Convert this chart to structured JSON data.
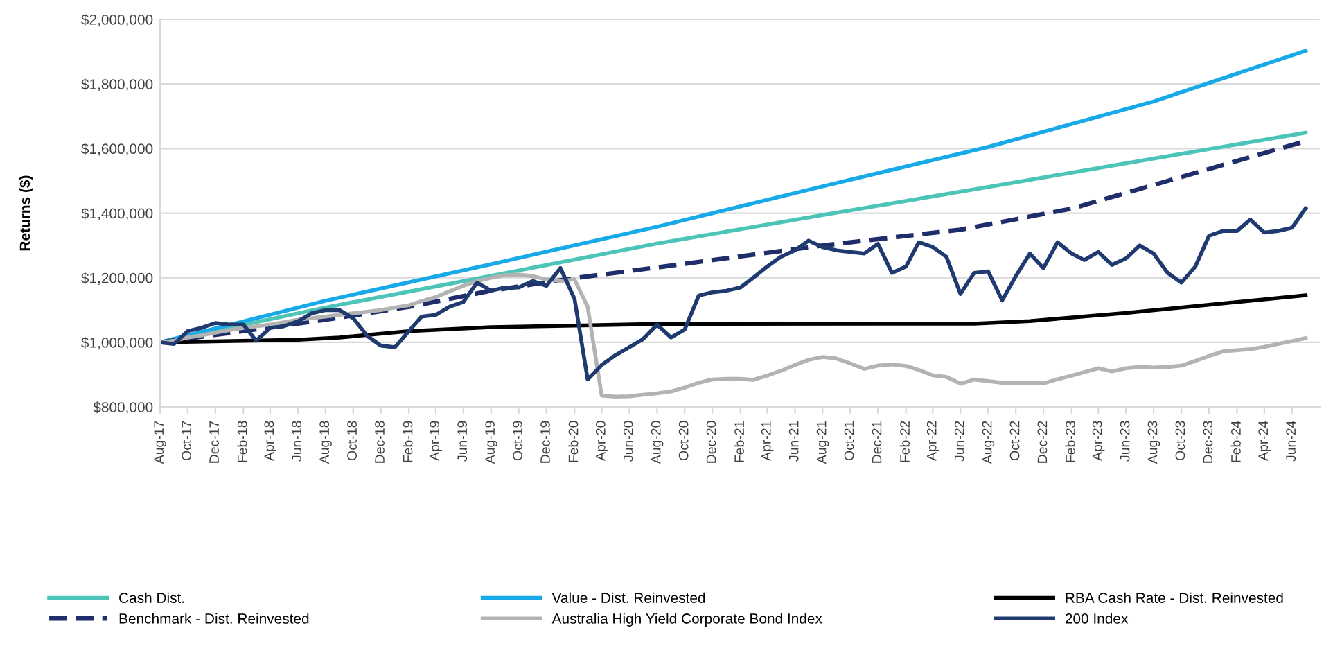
{
  "chart_data": {
    "type": "line",
    "ylabel": "Returns ($)",
    "x": [
      "2017-08",
      "2017-09",
      "2017-10",
      "2017-11",
      "2017-12",
      "2018-01",
      "2018-02",
      "2018-03",
      "2018-04",
      "2018-05",
      "2018-06",
      "2018-07",
      "2018-08",
      "2018-09",
      "2018-10",
      "2018-11",
      "2018-12",
      "2019-01",
      "2019-02",
      "2019-03",
      "2019-04",
      "2019-05",
      "2019-06",
      "2019-07",
      "2019-08",
      "2019-09",
      "2019-10",
      "2019-11",
      "2019-12",
      "2020-01",
      "2020-02",
      "2020-03",
      "2020-04",
      "2020-05",
      "2020-06",
      "2020-07",
      "2020-08",
      "2020-09",
      "2020-10",
      "2020-11",
      "2020-12",
      "2021-01",
      "2021-02",
      "2021-03",
      "2021-04",
      "2021-05",
      "2021-06",
      "2021-07",
      "2021-08",
      "2021-09",
      "2021-10",
      "2021-11",
      "2021-12",
      "2022-01",
      "2022-02",
      "2022-03",
      "2022-04",
      "2022-05",
      "2022-06",
      "2022-07",
      "2022-08",
      "2022-09",
      "2022-10",
      "2022-11",
      "2022-12",
      "2023-01",
      "2023-02",
      "2023-03",
      "2023-04",
      "2023-05",
      "2023-06",
      "2023-07",
      "2023-08",
      "2023-09",
      "2023-10",
      "2023-11",
      "2023-12",
      "2024-01",
      "2024-02",
      "2024-03",
      "2024-04",
      "2024-05",
      "2024-06",
      "2024-07"
    ],
    "series": [
      {
        "name": "Cash Dist.",
        "color": "#4dc4b8",
        "x": [
          "2017-08",
          "2018-08",
          "2019-08",
          "2020-08",
          "2021-08",
          "2022-08",
          "2023-08",
          "2024-07"
        ],
        "values": [
          1000000,
          1108000,
          1206000,
          1306000,
          1394000,
          1481000,
          1569000,
          1649000
        ]
      },
      {
        "name": "Value - Dist. Reinvested",
        "color": "#17a9e8",
        "x": [
          "2017-08",
          "2018-08",
          "2019-08",
          "2020-08",
          "2021-08",
          "2022-08",
          "2023-08",
          "2024-07"
        ],
        "values": [
          1000000,
          1129000,
          1242000,
          1358000,
          1483000,
          1605000,
          1746000,
          1903000
        ]
      },
      {
        "name": "RBA Cash Rate - Dist. Reinvested",
        "color": "#000000",
        "x": [
          "2017-08",
          "2018-06",
          "2018-09",
          "2019-02",
          "2019-08",
          "2020-02",
          "2020-08",
          "2022-07",
          "2022-11",
          "2023-06",
          "2024-07"
        ],
        "values": [
          1000000,
          1008000,
          1015000,
          1035000,
          1047000,
          1052000,
          1057000,
          1058000,
          1066000,
          1091000,
          1146000
        ]
      },
      {
        "name": "Benchmark - Dist. Reinvested",
        "color": "#1f2d6b",
        "line_style": "dashed",
        "x": [
          "2017-08",
          "2018-02",
          "2018-08",
          "2019-02",
          "2019-08",
          "2020-02",
          "2020-08",
          "2021-08",
          "2022-06",
          "2023-02",
          "2023-09",
          "2024-07"
        ],
        "values": [
          1000000,
          1035000,
          1070000,
          1110000,
          1160000,
          1199000,
          1232000,
          1300000,
          1349000,
          1414000,
          1500000,
          1623000
        ]
      },
      {
        "name": "Australia High Yield Corporate Bond Index",
        "color": "#b3b3b3",
        "values": [
          1000000,
          1005000,
          1015000,
          1022000,
          1030000,
          1038000,
          1045000,
          1050000,
          1055000,
          1062000,
          1070000,
          1075000,
          1080000,
          1085000,
          1090000,
          1095000,
          1100000,
          1108000,
          1115000,
          1128000,
          1140000,
          1158000,
          1175000,
          1190000,
          1200000,
          1208000,
          1210000,
          1205000,
          1195000,
          1190000,
          1195000,
          1110000,
          835000,
          832000,
          833000,
          838000,
          842000,
          848000,
          860000,
          875000,
          885000,
          887000,
          887000,
          884000,
          897000,
          912000,
          930000,
          946000,
          955000,
          950000,
          935000,
          918000,
          928000,
          932000,
          927000,
          915000,
          898000,
          893000,
          872000,
          885000,
          880000,
          875000,
          875000,
          875000,
          873000,
          886000,
          897000,
          908000,
          920000,
          910000,
          920000,
          924000,
          922000,
          924000,
          928000,
          943000,
          958000,
          972000,
          976000,
          979000,
          986000,
          995000,
          1004000,
          1013000
        ]
      },
      {
        "name": "200 Index",
        "color": "#1f3a6e",
        "values": [
          1000000,
          995000,
          1035000,
          1045000,
          1060000,
          1055000,
          1055000,
          1005000,
          1045000,
          1050000,
          1065000,
          1090000,
          1100000,
          1100000,
          1075000,
          1020000,
          990000,
          985000,
          1035000,
          1080000,
          1085000,
          1110000,
          1125000,
          1185000,
          1160000,
          1170000,
          1170000,
          1190000,
          1175000,
          1230000,
          1135000,
          885000,
          930000,
          960000,
          985000,
          1010000,
          1055000,
          1015000,
          1040000,
          1145000,
          1155000,
          1160000,
          1170000,
          1200000,
          1235000,
          1265000,
          1285000,
          1315000,
          1295000,
          1285000,
          1280000,
          1275000,
          1305000,
          1215000,
          1235000,
          1310000,
          1295000,
          1265000,
          1150000,
          1215000,
          1220000,
          1130000,
          1205000,
          1275000,
          1230000,
          1310000,
          1275000,
          1255000,
          1280000,
          1240000,
          1260000,
          1300000,
          1275000,
          1215000,
          1185000,
          1235000,
          1330000,
          1345000,
          1345000,
          1380000,
          1340000,
          1345000,
          1355000,
          1415000
        ]
      }
    ],
    "xlim": [
      "2017-08",
      "2024-08"
    ],
    "xticks": [
      {
        "value": "2017-08",
        "label": "Aug-17"
      },
      {
        "value": "2017-10",
        "label": "Oct-17"
      },
      {
        "value": "2017-12",
        "label": "Dec-17"
      },
      {
        "value": "2018-02",
        "label": "Feb-18"
      },
      {
        "value": "2018-04",
        "label": "Apr-18"
      },
      {
        "value": "2018-06",
        "label": "Jun-18"
      },
      {
        "value": "2018-08",
        "label": "Aug-18"
      },
      {
        "value": "2018-10",
        "label": "Oct-18"
      },
      {
        "value": "2018-12",
        "label": "Dec-18"
      },
      {
        "value": "2019-02",
        "label": "Feb-19"
      },
      {
        "value": "2019-04",
        "label": "Apr-19"
      },
      {
        "value": "2019-06",
        "label": "Jun-19"
      },
      {
        "value": "2019-08",
        "label": "Aug-19"
      },
      {
        "value": "2019-10",
        "label": "Oct-19"
      },
      {
        "value": "2019-12",
        "label": "Dec-19"
      },
      {
        "value": "2020-02",
        "label": "Feb-20"
      },
      {
        "value": "2020-04",
        "label": "Apr-20"
      },
      {
        "value": "2020-06",
        "label": "Jun-20"
      },
      {
        "value": "2020-08",
        "label": "Aug-20"
      },
      {
        "value": "2020-10",
        "label": "Oct-20"
      },
      {
        "value": "2020-12",
        "label": "Dec-20"
      },
      {
        "value": "2021-02",
        "label": "Feb-21"
      },
      {
        "value": "2021-04",
        "label": "Apr-21"
      },
      {
        "value": "2021-06",
        "label": "Jun-21"
      },
      {
        "value": "2021-08",
        "label": "Aug-21"
      },
      {
        "value": "2021-10",
        "label": "Oct-21"
      },
      {
        "value": "2021-12",
        "label": "Dec-21"
      },
      {
        "value": "2022-02",
        "label": "Feb-22"
      },
      {
        "value": "2022-04",
        "label": "Apr-22"
      },
      {
        "value": "2022-06",
        "label": "Jun-22"
      },
      {
        "value": "2022-08",
        "label": "Aug-22"
      },
      {
        "value": "2022-10",
        "label": "Oct-22"
      },
      {
        "value": "2022-12",
        "label": "Dec-22"
      },
      {
        "value": "2023-02",
        "label": "Feb-23"
      },
      {
        "value": "2023-04",
        "label": "Apr-23"
      },
      {
        "value": "2023-06",
        "label": "Jun-23"
      },
      {
        "value": "2023-08",
        "label": "Aug-23"
      },
      {
        "value": "2023-10",
        "label": "Oct-23"
      },
      {
        "value": "2023-12",
        "label": "Dec-23"
      },
      {
        "value": "2024-02",
        "label": "Feb-24"
      },
      {
        "value": "2024-04",
        "label": "Apr-24"
      },
      {
        "value": "2024-06",
        "label": "Jun-24"
      }
    ],
    "ylim": [
      800000,
      2000000
    ],
    "yticks": [
      {
        "value": 800000,
        "label": "$800,000"
      },
      {
        "value": 1000000,
        "label": "$1,000,000"
      },
      {
        "value": 1200000,
        "label": "$1,200,000"
      },
      {
        "value": 1400000,
        "label": "$1,400,000"
      },
      {
        "value": 1600000,
        "label": "$1,600,000"
      },
      {
        "value": 1800000,
        "label": "$1,800,000"
      },
      {
        "value": 2000000,
        "label": "$2,000,000"
      }
    ],
    "grid": "y",
    "legend": "bottom"
  }
}
